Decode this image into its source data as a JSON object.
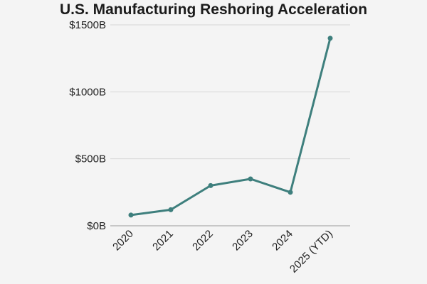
{
  "chart_data": {
    "type": "line",
    "title": "U.S. Manufacturing Reshoring Acceleration",
    "xlabel": "",
    "ylabel": "",
    "categories": [
      "2020",
      "2021",
      "2022",
      "2023",
      "2024",
      "2025 (YTD)"
    ],
    "series": [
      {
        "values": [
          80,
          120,
          300,
          350,
          250,
          1400
        ]
      }
    ],
    "ylim": [
      0,
      1500
    ],
    "yticks": [
      0,
      500,
      1000,
      1500
    ],
    "ytick_labels": [
      "$0B",
      "$500B",
      "$1000B",
      "$1500B"
    ],
    "grid": true,
    "legend": "none",
    "colors": {
      "line": "#3e7f7d",
      "grid": "#d6d6d6",
      "background": "#f4f4f4"
    }
  }
}
